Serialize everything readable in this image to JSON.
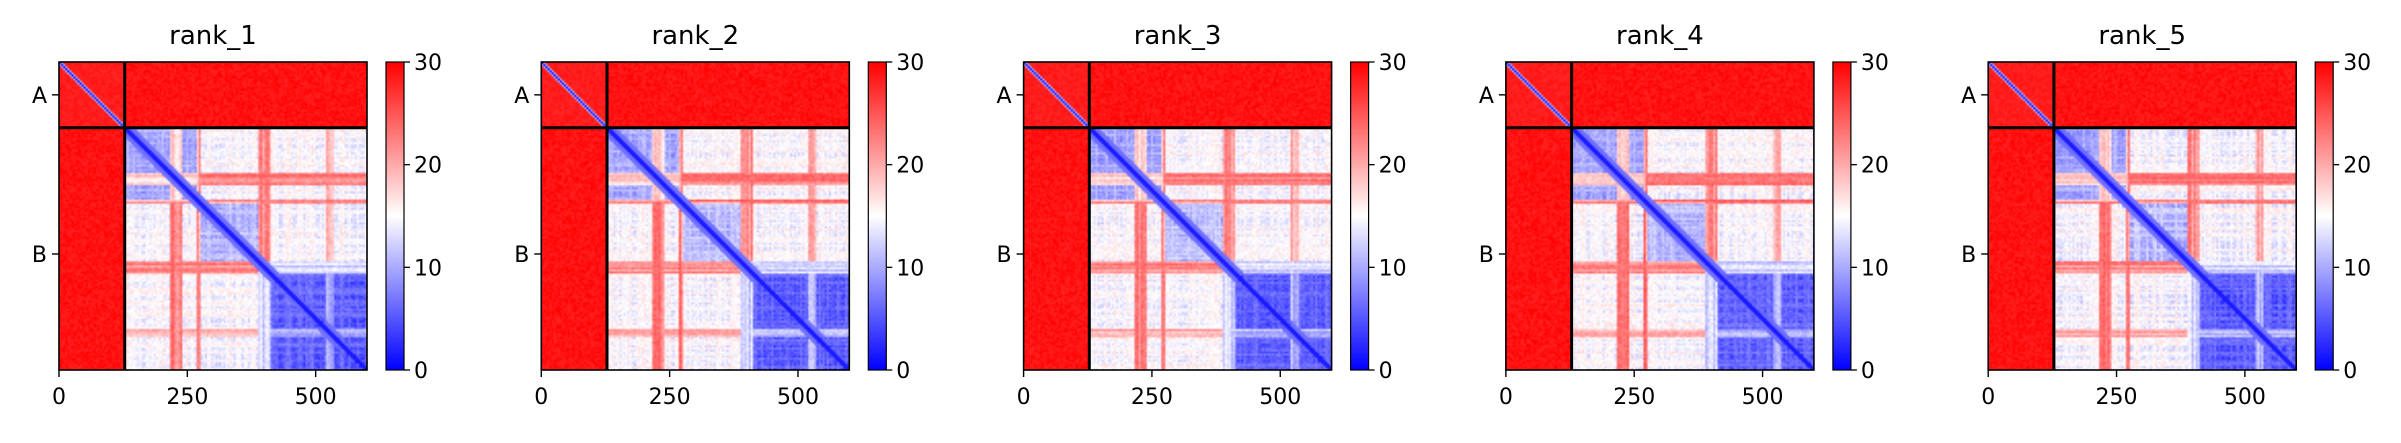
{
  "colors": {
    "low": "#0000ff",
    "mid": "#ffffff",
    "high": "#ff0000",
    "divider": "#000000"
  },
  "chart_data": [
    {
      "type": "heatmap",
      "title": "rank_1",
      "xlabel": "",
      "ylabel": "",
      "xlim": [
        0,
        600
      ],
      "ylim": [
        600,
        0
      ],
      "x_ticks": [
        0,
        250,
        500
      ],
      "x_tick_labels": [
        "0",
        "250",
        "500"
      ],
      "y_ticks": [
        64,
        374
      ],
      "y_tick_labels": [
        "A",
        "B"
      ],
      "chain_boundary": 128,
      "colorbar": {
        "min": 0,
        "max": 30,
        "ticks": [
          0,
          10,
          20,
          30
        ],
        "tick_labels": [
          "0",
          "10",
          "20",
          "30"
        ],
        "colormap": "bwr"
      },
      "values_description": "Predicted aligned error matrix; blue = low error (0), white ~15, red = high error (30)"
    },
    {
      "type": "heatmap",
      "title": "rank_2",
      "xlabel": "",
      "ylabel": "",
      "xlim": [
        0,
        600
      ],
      "ylim": [
        600,
        0
      ],
      "x_ticks": [
        0,
        250,
        500
      ],
      "x_tick_labels": [
        "0",
        "250",
        "500"
      ],
      "y_ticks": [
        64,
        374
      ],
      "y_tick_labels": [
        "A",
        "B"
      ],
      "chain_boundary": 128,
      "colorbar": {
        "min": 0,
        "max": 30,
        "ticks": [
          0,
          10,
          20,
          30
        ],
        "tick_labels": [
          "0",
          "10",
          "20",
          "30"
        ],
        "colormap": "bwr"
      },
      "values_description": "Predicted aligned error matrix; blue = low error (0), white ~15, red = high error (30)"
    },
    {
      "type": "heatmap",
      "title": "rank_3",
      "xlabel": "",
      "ylabel": "",
      "xlim": [
        0,
        600
      ],
      "ylim": [
        600,
        0
      ],
      "x_ticks": [
        0,
        250,
        500
      ],
      "x_tick_labels": [
        "0",
        "250",
        "500"
      ],
      "y_ticks": [
        64,
        374
      ],
      "y_tick_labels": [
        "A",
        "B"
      ],
      "chain_boundary": 128,
      "colorbar": {
        "min": 0,
        "max": 30,
        "ticks": [
          0,
          10,
          20,
          30
        ],
        "tick_labels": [
          "0",
          "10",
          "20",
          "30"
        ],
        "colormap": "bwr"
      },
      "values_description": "Predicted aligned error matrix; blue = low error (0), white ~15, red = high error (30)"
    },
    {
      "type": "heatmap",
      "title": "rank_4",
      "xlabel": "",
      "ylabel": "",
      "xlim": [
        0,
        600
      ],
      "ylim": [
        600,
        0
      ],
      "x_ticks": [
        0,
        250,
        500
      ],
      "x_tick_labels": [
        "0",
        "250",
        "500"
      ],
      "y_ticks": [
        64,
        374
      ],
      "y_tick_labels": [
        "A",
        "B"
      ],
      "chain_boundary": 128,
      "colorbar": {
        "min": 0,
        "max": 30,
        "ticks": [
          0,
          10,
          20,
          30
        ],
        "tick_labels": [
          "0",
          "10",
          "20",
          "30"
        ],
        "colormap": "bwr"
      },
      "values_description": "Predicted aligned error matrix; blue = low error (0), white ~15, red = high error (30)"
    },
    {
      "type": "heatmap",
      "title": "rank_5",
      "xlabel": "",
      "ylabel": "",
      "xlim": [
        0,
        600
      ],
      "ylim": [
        600,
        0
      ],
      "x_ticks": [
        0,
        250,
        500
      ],
      "x_tick_labels": [
        "0",
        "250",
        "500"
      ],
      "y_ticks": [
        64,
        374
      ],
      "y_tick_labels": [
        "A",
        "B"
      ],
      "chain_boundary": 128,
      "colorbar": {
        "min": 0,
        "max": 30,
        "ticks": [
          0,
          10,
          20,
          30
        ],
        "tick_labels": [
          "0",
          "10",
          "20",
          "30"
        ],
        "colormap": "bwr"
      },
      "values_description": "Predicted aligned error matrix; blue = low error (0), white ~15, red = high error (30)"
    }
  ]
}
